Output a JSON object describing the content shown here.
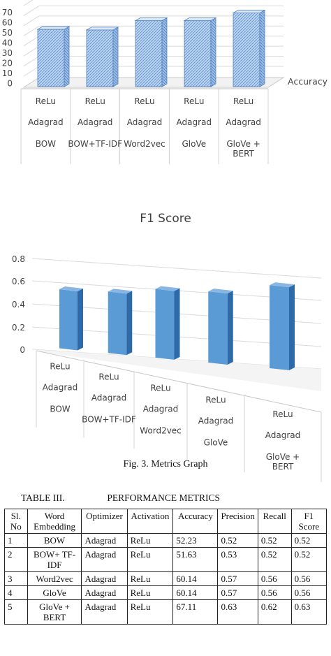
{
  "chart_data": [
    {
      "type": "bar",
      "title": "",
      "categories": [
        [
          "ReLu",
          "Adagrad",
          "BOW"
        ],
        [
          "ReLu",
          "Adagrad",
          "BOW+TF-IDF"
        ],
        [
          "ReLu",
          "Adagrad",
          "Word2vec"
        ],
        [
          "ReLu",
          "Adagrad",
          "GloVe"
        ],
        [
          "ReLu",
          "Adagrad",
          "GloVe + BERT"
        ]
      ],
      "series": [
        {
          "name": "Accuracy",
          "values": [
            52.23,
            51.63,
            60.14,
            60.14,
            67.11
          ]
        }
      ],
      "yticks": [
        "70",
        "60",
        "50",
        "40",
        "30",
        "20",
        "10",
        "0"
      ],
      "ylim": [
        0,
        70
      ],
      "legend": "right",
      "color": "#bcd3ee"
    },
    {
      "type": "bar",
      "title": "F1 Score",
      "categories": [
        [
          "ReLu",
          "Adagrad",
          "BOW"
        ],
        [
          "ReLu",
          "Adagrad",
          "BOW+TF-IDF"
        ],
        [
          "ReLu",
          "Adagrad",
          "Word2vec"
        ],
        [
          "ReLu",
          "Adagrad",
          "GloVe"
        ],
        [
          "ReLu",
          "Adagrad",
          "GloVe + BERT"
        ]
      ],
      "series": [
        {
          "values": [
            0.52,
            0.52,
            0.56,
            0.56,
            0.63
          ]
        }
      ],
      "yticks": [
        "0.8",
        "0.6",
        "0.4",
        "0.2",
        "0"
      ],
      "ylim": [
        0,
        0.8
      ],
      "color": "#5b9bd5"
    }
  ],
  "caption": "Fig. 3. Metrics Graph",
  "table": {
    "number": "TABLE III.",
    "title": "PERFORMANCE METRICS",
    "headers": [
      "Sl. No",
      "Word Embedding",
      "Optimizer",
      "Activation",
      "Accuracy",
      "Precision",
      "Recall",
      "F1 Score"
    ],
    "rows": [
      [
        "1",
        "BOW",
        "Adagrad",
        "ReLu",
        "52.23",
        "0.52",
        "0.52",
        "0.52"
      ],
      [
        "2",
        "BOW+ TF-IDF",
        "Adagrad",
        "ReLu",
        "51.63",
        "0.53",
        "0.52",
        "0.52"
      ],
      [
        "3",
        "Word2vec",
        "Adagrad",
        "ReLu",
        "60.14",
        "0.57",
        "0.56",
        "0.56"
      ],
      [
        "4",
        "GloVe",
        "Adagrad",
        "ReLu",
        "60.14",
        "0.57",
        "0.56",
        "0.56"
      ],
      [
        "5",
        "GloVe + BERT",
        "Adagrad",
        "ReLu",
        "67.11",
        "0.63",
        "0.62",
        "0.63"
      ]
    ]
  }
}
